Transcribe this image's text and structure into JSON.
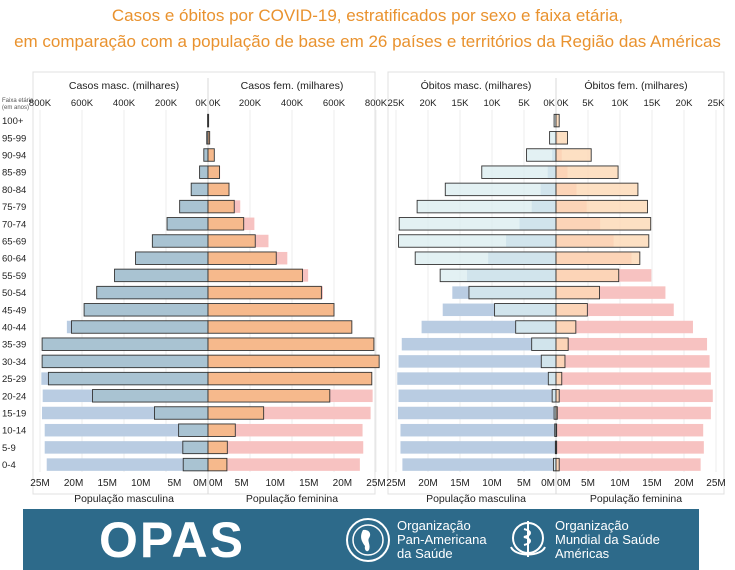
{
  "header": {
    "title_line1": "Casos e óbitos por COVID-19, estratificados por sexo e faixa etária,",
    "title_line2": "em comparação com a população de base em 26 países e territórios da Região das Américas"
  },
  "colors": {
    "pop_male": "#b9cce2",
    "pop_female": "#f7c2c1",
    "cases_male": "#a9c3d2",
    "cases_female": "#f6b98c",
    "deaths_male_light": "#d9ecef",
    "deaths_female_light": "#fdd8b4",
    "footer_bg": "#2d6a8a",
    "title": "#e9922e"
  },
  "chart_data": [
    {
      "type": "bar",
      "orientation": "population-pyramid",
      "age_axis_label": "Faixa etária (em anos)",
      "age_groups": [
        "100+",
        "95-99",
        "90-94",
        "85-89",
        "80-84",
        "75-79",
        "70-74",
        "65-69",
        "60-64",
        "55-59",
        "50-54",
        "45-49",
        "40-44",
        "35-39",
        "30-34",
        "25-29",
        "20-24",
        "15-19",
        "10-14",
        "5-9",
        "0-4"
      ],
      "top_axis": {
        "left_label": "Casos masc. (milhares)",
        "right_label": "Casos fem. (milhares)",
        "ticks": [
          "800K",
          "600K",
          "400K",
          "200K",
          "0K",
          "0K",
          "200K",
          "400K",
          "600K",
          "800K"
        ],
        "max": 800
      },
      "bottom_axis": {
        "left_label": "População masculina",
        "right_label": "População feminina",
        "ticks": [
          "25M",
          "20M",
          "15M",
          "10M",
          "5M",
          "0M",
          "0M",
          "5M",
          "10M",
          "15M",
          "20M",
          "25M"
        ],
        "max": 25
      },
      "series": [
        {
          "name": "População masculina",
          "unit": "M",
          "values": [
            0.05,
            0.2,
            0.6,
            1.3,
            2.4,
            3.8,
            5.7,
            7.8,
            10.6,
            13.9,
            16.2,
            17.7,
            21.0,
            24.1,
            24.6,
            24.8,
            24.6,
            24.7,
            24.3,
            24.3,
            24.0
          ]
        },
        {
          "name": "População feminina",
          "unit": "M",
          "values": [
            0.1,
            0.3,
            0.9,
            1.8,
            3.2,
            4.8,
            6.9,
            9.0,
            11.8,
            14.9,
            17.1,
            18.4,
            21.4,
            23.6,
            24.0,
            24.2,
            24.5,
            24.2,
            23.0,
            23.1,
            22.6
          ]
        },
        {
          "name": "Casos masc.",
          "unit": "milhares",
          "values": [
            2,
            6,
            20,
            40,
            80,
            135,
            195,
            265,
            345,
            445,
            530,
            590,
            650,
            790,
            790,
            760,
            550,
            255,
            140,
            120,
            118
          ]
        },
        {
          "name": "Casos fem.",
          "unit": "milhares",
          "values": [
            3,
            8,
            30,
            55,
            100,
            125,
            170,
            225,
            325,
            450,
            540,
            600,
            685,
            790,
            815,
            780,
            580,
            265,
            130,
            92,
            90
          ]
        }
      ]
    },
    {
      "type": "bar",
      "orientation": "population-pyramid",
      "age_groups": [
        "100+",
        "95-99",
        "90-94",
        "85-89",
        "80-84",
        "75-79",
        "70-74",
        "65-69",
        "60-64",
        "55-59",
        "50-54",
        "45-49",
        "40-44",
        "35-39",
        "30-34",
        "25-29",
        "20-24",
        "15-19",
        "10-14",
        "5-9",
        "0-4"
      ],
      "top_axis": {
        "left_label": "Óbitos masc. (milhares)",
        "right_label": "Óbitos fem. (milhares)",
        "ticks": [
          "25K",
          "20K",
          "15K",
          "10K",
          "5K",
          "0K",
          "0K",
          "5K",
          "10K",
          "15K",
          "20K",
          "25K"
        ],
        "max": 25
      },
      "bottom_axis": {
        "left_label": "População masculina",
        "right_label": "População feminina",
        "ticks": [
          "25M",
          "20M",
          "15M",
          "10M",
          "5M",
          "0M",
          "0M",
          "5M",
          "10M",
          "15M",
          "20M",
          "25M"
        ],
        "max": 25
      },
      "series": [
        {
          "name": "População masculina",
          "unit": "M",
          "values": [
            0.05,
            0.2,
            0.6,
            1.3,
            2.4,
            3.8,
            5.7,
            7.8,
            10.6,
            13.9,
            16.2,
            17.7,
            21.0,
            24.1,
            24.6,
            24.8,
            24.6,
            24.7,
            24.3,
            24.3,
            24.0
          ]
        },
        {
          "name": "População feminina",
          "unit": "M",
          "values": [
            0.1,
            0.3,
            0.9,
            1.8,
            3.2,
            4.8,
            6.9,
            9.0,
            11.8,
            14.9,
            17.1,
            18.4,
            21.4,
            23.6,
            24.0,
            24.2,
            24.5,
            24.2,
            23.0,
            23.1,
            22.6
          ]
        },
        {
          "name": "Óbitos masc.",
          "unit": "milhares",
          "values": [
            0.3,
            1.0,
            4.6,
            11.6,
            17.3,
            21.7,
            24.5,
            24.6,
            22.0,
            18.1,
            13.6,
            9.6,
            6.3,
            3.8,
            2.3,
            1.2,
            0.6,
            0.3,
            0.2,
            0.1,
            0.4
          ]
        },
        {
          "name": "Óbitos fem.",
          "unit": "milhares",
          "values": [
            0.5,
            1.8,
            5.5,
            9.7,
            12.8,
            14.3,
            14.8,
            14.5,
            13.1,
            9.8,
            6.8,
            4.9,
            3.1,
            1.9,
            1.4,
            0.9,
            0.5,
            0.2,
            0.1,
            0.1,
            0.5
          ]
        }
      ]
    }
  ],
  "footer": {
    "brand": "OPAS",
    "org1_line1": "Organização",
    "org1_line2": "Pan-Americana",
    "org1_line3": "da Saúde",
    "org2_line1": "Organização",
    "org2_line2": "Mundial da Saúde",
    "org2_line3": "Américas"
  }
}
